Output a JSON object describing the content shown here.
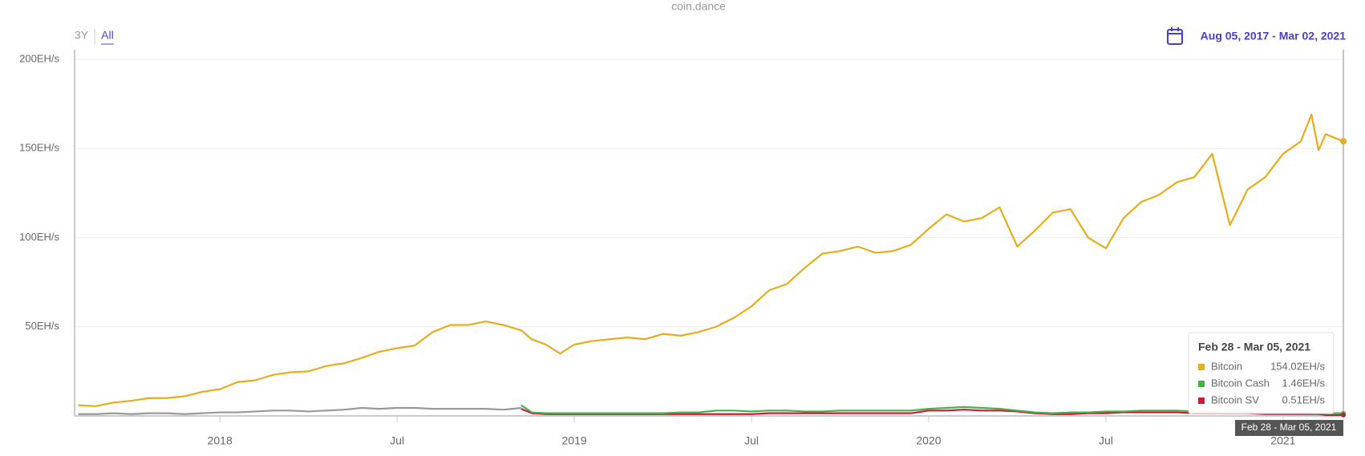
{
  "chart_data": {
    "type": "line",
    "credit": "coin.dance",
    "range_buttons": [
      "3Y",
      "All"
    ],
    "active_range": 1,
    "date_range": "Aug 05, 2017 - Mar 02, 2021",
    "x": [
      2017.6,
      2017.65,
      2017.7,
      2017.75,
      2017.8,
      2017.85,
      2017.9,
      2017.95,
      2018,
      2018.05,
      2018.1,
      2018.15,
      2018.2,
      2018.25,
      2018.3,
      2018.35,
      2018.4,
      2018.45,
      2018.5,
      2018.55,
      2018.6,
      2018.65,
      2018.7,
      2018.75,
      2018.8,
      2018.85,
      2018.88,
      2018.92,
      2018.96,
      2019,
      2019.05,
      2019.1,
      2019.15,
      2019.2,
      2019.25,
      2019.3,
      2019.35,
      2019.4,
      2019.45,
      2019.5,
      2019.55,
      2019.6,
      2019.65,
      2019.7,
      2019.75,
      2019.8,
      2019.85,
      2019.9,
      2019.95,
      2020,
      2020.05,
      2020.1,
      2020.15,
      2020.2,
      2020.25,
      2020.3,
      2020.35,
      2020.4,
      2020.45,
      2020.5,
      2020.55,
      2020.6,
      2020.65,
      2020.7,
      2020.75,
      2020.8,
      2020.85,
      2020.9,
      2020.95,
      2021,
      2021.05,
      2021.08,
      2021.1,
      2021.12,
      2021.17
    ],
    "series": [
      {
        "name": "Bitcoin",
        "color": "#e6ac1f",
        "values": [
          6,
          5.5,
          7.5,
          8.5,
          10,
          10,
          11,
          13.5,
          15,
          19,
          20,
          23,
          24.5,
          25,
          28,
          29.5,
          32.5,
          36,
          38,
          39.5,
          47,
          51,
          51,
          53,
          51,
          48,
          43,
          40,
          35,
          40,
          42,
          43,
          44,
          43,
          46,
          45,
          47,
          50,
          55,
          61.5,
          70.5,
          74,
          83,
          91,
          92.5,
          95,
          91.5,
          92.5,
          96,
          105,
          113,
          109,
          111,
          117,
          95,
          104,
          114,
          116,
          100,
          94,
          111,
          120,
          124,
          131,
          134,
          147,
          107,
          127,
          134,
          147,
          154,
          169,
          149,
          158,
          154.02
        ]
      },
      {
        "name": "Bitcoin Cash",
        "color": "#4cae4c",
        "values": [
          null,
          null,
          null,
          null,
          null,
          null,
          null,
          null,
          null,
          null,
          null,
          null,
          null,
          null,
          null,
          null,
          null,
          null,
          null,
          null,
          null,
          null,
          null,
          null,
          null,
          6,
          2,
          1.5,
          1.5,
          1.5,
          1.5,
          1.5,
          1.5,
          1.5,
          1.5,
          2,
          2,
          3,
          3,
          2.5,
          3,
          3,
          2.5,
          2.5,
          3,
          3,
          3,
          3,
          3,
          4,
          4.5,
          5,
          4.5,
          4,
          3,
          2,
          1.5,
          2,
          2,
          2.5,
          2.5,
          3,
          3,
          3,
          2.5,
          2.5,
          2,
          2,
          2,
          2,
          2,
          1.5,
          1.5,
          1.5,
          1.46
        ]
      },
      {
        "name": "Bitcoin SV",
        "color": "#c41e3a",
        "values": [
          null,
          null,
          null,
          null,
          null,
          null,
          null,
          null,
          null,
          null,
          null,
          null,
          null,
          null,
          null,
          null,
          null,
          null,
          null,
          null,
          null,
          null,
          null,
          null,
          null,
          4,
          1.5,
          1,
          1,
          1,
          1,
          1,
          1,
          1,
          1,
          1,
          1,
          1,
          1,
          1,
          1.5,
          1.5,
          1.5,
          1.5,
          1.5,
          1.5,
          1.5,
          1.5,
          1.5,
          3,
          3,
          3.5,
          3,
          3,
          2.5,
          1.5,
          1,
          1,
          1.5,
          1.5,
          2,
          2,
          2,
          2,
          1.5,
          1.5,
          1.5,
          1.5,
          1,
          1,
          1,
          1,
          1,
          0.5,
          0.51
        ]
      },
      {
        "color": "#999999",
        "values": [
          1,
          1,
          1.5,
          1,
          1.5,
          1.5,
          1,
          1.5,
          2,
          2,
          2.5,
          3,
          3,
          2.5,
          3,
          3.5,
          4.5,
          4,
          4.5,
          4.5,
          4,
          4,
          4,
          4,
          3.5,
          4.5,
          null,
          null,
          null,
          null,
          null,
          null,
          null,
          null,
          null,
          null,
          null,
          null,
          null,
          null,
          null,
          null,
          null,
          null,
          null,
          null,
          null,
          null,
          null,
          null,
          null,
          null,
          null,
          null,
          null,
          null,
          null,
          null,
          null,
          null,
          null,
          null,
          null,
          null,
          null,
          null,
          null,
          null,
          null,
          null,
          null,
          null,
          null,
          null,
          null
        ]
      }
    ],
    "xlim": [
      2017.59,
      2021.17
    ],
    "xticks": [
      2018,
      {
        "value": 2018.5,
        "label": "Jul"
      },
      2019,
      {
        "value": 2019.5,
        "label": "Jul"
      },
      2020,
      {
        "value": 2020.5,
        "label": "Jul"
      },
      2021
    ],
    "ylim": [
      0,
      200
    ],
    "yticks": [
      {
        "value": 50,
        "label": "50EH/s"
      },
      {
        "value": 100,
        "label": "100EH/s"
      },
      {
        "value": 150,
        "label": "150EH/s"
      },
      {
        "value": 200,
        "label": "200EH/s"
      }
    ],
    "grid": true,
    "tooltip": {
      "title": "Feb 28 - Mar 05, 2021",
      "value_labels": [
        "154.02EH/s",
        "1.46EH/s",
        "0.51EH/s"
      ]
    }
  }
}
